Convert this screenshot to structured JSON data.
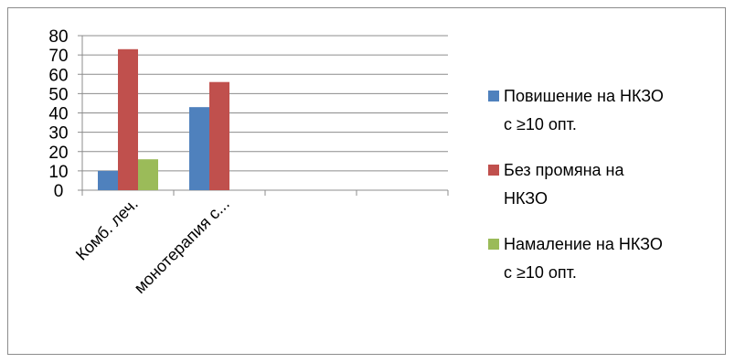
{
  "chart_data": {
    "type": "bar",
    "categories": [
      "Комб. леч.",
      "монотерапия с...",
      "",
      ""
    ],
    "series": [
      {
        "name": "Повишение на НКЗО с ≥10 опт.",
        "name_lines": [
          "Повишение на НКЗО",
          "с ≥10 опт."
        ],
        "color": "#4f81bd",
        "values": [
          10,
          43,
          null,
          null
        ]
      },
      {
        "name": "Без промяна на НКЗО",
        "name_lines": [
          "Без промяна на",
          "НКЗО"
        ],
        "color": "#c0504d",
        "values": [
          73,
          56,
          null,
          null
        ]
      },
      {
        "name": "Намаление на НКЗО с ≥10 опт.",
        "name_lines": [
          "Намаление на НКЗО",
          "с ≥10 опт."
        ],
        "color": "#9bbb59",
        "values": [
          16,
          null,
          null,
          null
        ]
      }
    ],
    "ylim": [
      0,
      80
    ],
    "yticks": [
      0,
      10,
      20,
      30,
      40,
      50,
      60,
      70,
      80
    ],
    "grid": true,
    "legend": "right",
    "title": "",
    "xlabel": "",
    "ylabel": ""
  }
}
